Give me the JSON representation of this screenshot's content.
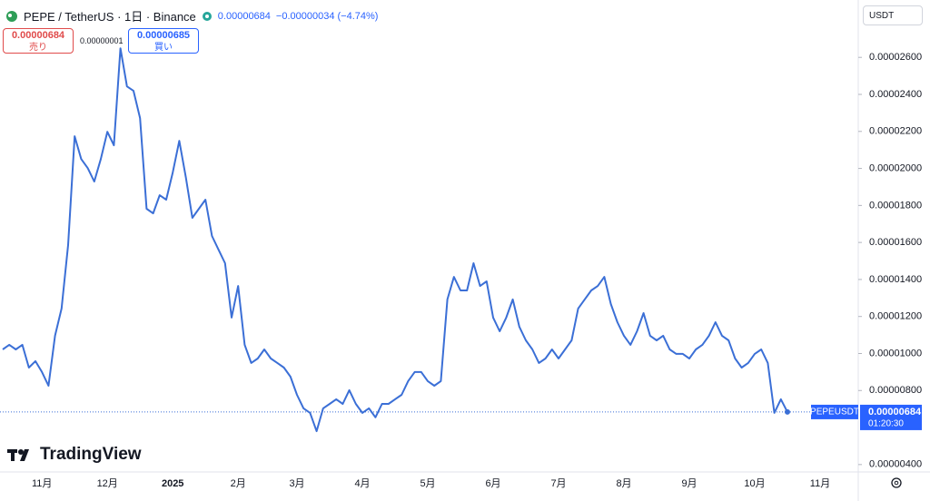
{
  "header": {
    "symbol": "PEPE / TetherUS · 1日 · Binance",
    "last": "0.00000684",
    "change": "−0.00000034 (−4.74%)",
    "sell_price": "0.00000684",
    "sell_label": "売り",
    "spread": "0.00000001",
    "buy_price": "0.00000685",
    "buy_label": "買い",
    "currency": "USDT",
    "logo": "TradingView"
  },
  "chart_data": {
    "type": "line",
    "color": "#3b6fd6",
    "grid": false,
    "categories": [
      null,
      null,
      null,
      null,
      null,
      null,
      "11月",
      null,
      null,
      null,
      null,
      null,
      null,
      null,
      null,
      null,
      "12月",
      null,
      null,
      null,
      null,
      null,
      null,
      null,
      null,
      null,
      "2025",
      null,
      null,
      null,
      null,
      null,
      null,
      null,
      null,
      null,
      "2月",
      null,
      null,
      null,
      null,
      null,
      null,
      null,
      null,
      "3月",
      null,
      null,
      null,
      null,
      null,
      null,
      null,
      null,
      null,
      "4月",
      null,
      null,
      null,
      null,
      null,
      null,
      null,
      null,
      null,
      "5月",
      null,
      null,
      null,
      null,
      null,
      null,
      null,
      null,
      null,
      "6月",
      null,
      null,
      null,
      null,
      null,
      null,
      null,
      null,
      null,
      "7月",
      null,
      null,
      null,
      null,
      null,
      null,
      null,
      null,
      null,
      "8月",
      null,
      null,
      null,
      null,
      null,
      null,
      null,
      null,
      null,
      "9月",
      null,
      null,
      null,
      null,
      null,
      null,
      null,
      null,
      null,
      "10月",
      null,
      null,
      null,
      null,
      null,
      null,
      null,
      null,
      null,
      "11月"
    ],
    "values": [
      1.022e-05,
      1.047e-05,
      1.022e-05,
      1.047e-05,
      9.24e-06,
      9.59e-06,
      9e-06,
      8.26e-06,
      1.096e-05,
      1.243e-05,
      1.586e-05,
      2.174e-05,
      2.051e-05,
      2.002e-05,
      1.929e-05,
      2.051e-05,
      2.198e-05,
      2.125e-05,
      2.649e-05,
      2.443e-05,
      2.419e-05,
      2.272e-05,
      1.782e-05,
      1.757e-05,
      1.855e-05,
      1.831e-05,
      1.978e-05,
      2.149e-05,
      1.953e-05,
      1.733e-05,
      1.782e-05,
      1.831e-05,
      1.635e-05,
      1.561e-05,
      1.488e-05,
      1.194e-05,
      1.365e-05,
      1.047e-05,
      9.49e-06,
      9.73e-06,
      1.022e-05,
      9.73e-06,
      9.49e-06,
      9.24e-06,
      8.75e-06,
      7.77e-06,
      7.04e-06,
      6.79e-06,
      5.8e-06,
      7.04e-06,
      7.28e-06,
      7.53e-06,
      7.28e-06,
      8.02e-06,
      7.28e-06,
      6.79e-06,
      7.04e-06,
      6.55e-06,
      7.28e-06,
      7.28e-06,
      7.53e-06,
      7.77e-06,
      8.51e-06,
      9e-06,
      9e-06,
      8.51e-06,
      8.26e-06,
      8.51e-06,
      1.292e-05,
      1.414e-05,
      1.341e-05,
      1.341e-05,
      1.488e-05,
      1.365e-05,
      1.39e-05,
      1.194e-05,
      1.12e-05,
      1.194e-05,
      1.292e-05,
      1.145e-05,
      1.071e-05,
      1.022e-05,
      9.49e-06,
      9.73e-06,
      1.022e-05,
      9.73e-06,
      1.022e-05,
      1.071e-05,
      1.243e-05,
      1.292e-05,
      1.341e-05,
      1.365e-05,
      1.414e-05,
      1.267e-05,
      1.169e-05,
      1.096e-05,
      1.047e-05,
      1.12e-05,
      1.218e-05,
      1.096e-05,
      1.071e-05,
      1.096e-05,
      1.022e-05,
      9.98e-06,
      9.98e-06,
      9.73e-06,
      1.022e-05,
      1.047e-05,
      1.096e-05,
      1.169e-05,
      1.096e-05,
      1.071e-05,
      9.73e-06,
      9.24e-06,
      9.49e-06,
      9.98e-06,
      1.022e-05,
      9.49e-06,
      6.79e-06,
      7.53e-06,
      6.84e-06,
      null,
      null,
      null,
      null,
      null
    ],
    "ylim": [
      3.6e-06,
      2.91e-05
    ],
    "yticks": [
      {
        "value": 4e-06,
        "label": "0.00000400"
      },
      {
        "value": 8e-06,
        "label": "0.00000800"
      },
      {
        "value": 1e-05,
        "label": "0.00001000"
      },
      {
        "value": 1.2e-05,
        "label": "0.00001200"
      },
      {
        "value": 1.4e-05,
        "label": "0.00001400"
      },
      {
        "value": 1.6e-05,
        "label": "0.00001600"
      },
      {
        "value": 1.8e-05,
        "label": "0.00001800"
      },
      {
        "value": 2e-05,
        "label": "0.00002000"
      },
      {
        "value": 2.2e-05,
        "label": "0.00002200"
      },
      {
        "value": 2.4e-05,
        "label": "0.00002400"
      },
      {
        "value": 2.6e-05,
        "label": "0.00002600"
      }
    ],
    "price_line": {
      "value": 6.84e-06,
      "label": "0.00000684",
      "symbol": "PEPEUSDT",
      "countdown": "01:20:30"
    }
  }
}
